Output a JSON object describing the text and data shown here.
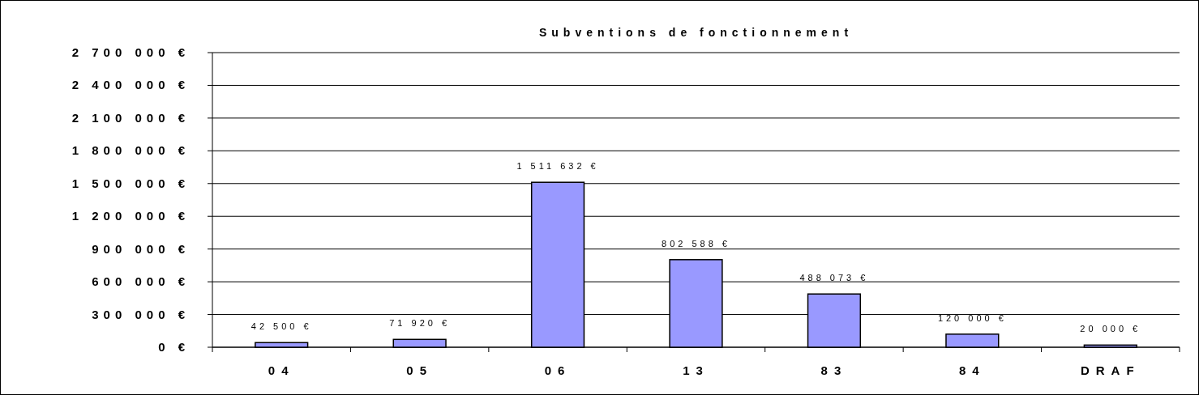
{
  "chart_data": {
    "type": "bar",
    "title": "Subventions de fonctionnement",
    "categories": [
      "04",
      "05",
      "06",
      "13",
      "83",
      "84",
      "DRAF"
    ],
    "values": [
      42500,
      71920,
      1511632,
      802588,
      488073,
      120000,
      20000
    ],
    "value_labels": [
      "42 500 €",
      "71 920 €",
      "1 511 632 €",
      "802 588 €",
      "488 073 €",
      "120 000 €",
      "20 000 €"
    ],
    "color": "#9999ff",
    "ylim": [
      0,
      2700000
    ],
    "yticks": [
      {
        "value": 0,
        "label": "0 €"
      },
      {
        "value": 300000,
        "label": "300 000 €"
      },
      {
        "value": 600000,
        "label": "600 000 €"
      },
      {
        "value": 900000,
        "label": "900 000 €"
      },
      {
        "value": 1200000,
        "label": "1 200 000 €"
      },
      {
        "value": 1500000,
        "label": "1 500 000 €"
      },
      {
        "value": 1800000,
        "label": "1 800 000 €"
      },
      {
        "value": 2100000,
        "label": "2 100 000 €"
      },
      {
        "value": 2400000,
        "label": "2 400 000 €"
      },
      {
        "value": 2700000,
        "label": "2 700 000 €"
      }
    ],
    "grid": "y"
  }
}
